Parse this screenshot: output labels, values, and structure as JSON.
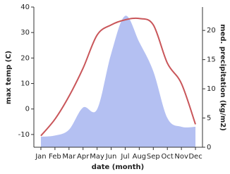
{
  "chart_data": {
    "type": "line-area",
    "x_label": "date (month)",
    "y_label": "max temp (C)",
    "y2_label": "med. precipitation (kg/m2)",
    "categories": [
      "Jan",
      "Feb",
      "Mar",
      "Apr",
      "May",
      "Jun",
      "Jul",
      "Aug",
      "Sep",
      "Oct",
      "Nov",
      "Dec"
    ],
    "series": [
      {
        "name": "max temp",
        "color": "#c9565a",
        "values": [
          -10.5,
          -4,
          5,
          16,
          29,
          33,
          35,
          35.5,
          33,
          18,
          10,
          -6
        ]
      },
      {
        "name": "precipitation",
        "color": "#b4c0f2",
        "axis": "y2",
        "values": [
          1.8,
          2,
          3,
          6.8,
          6.5,
          16,
          22.5,
          18,
          13,
          5,
          3.5,
          3.5
        ]
      }
    ],
    "ylim": [
      -15,
      40
    ],
    "yticks": [
      -10,
      0,
      10,
      20,
      30,
      40
    ],
    "y2lim": [
      0,
      24
    ],
    "y2ticks": [
      0,
      5,
      10,
      15,
      20
    ]
  }
}
